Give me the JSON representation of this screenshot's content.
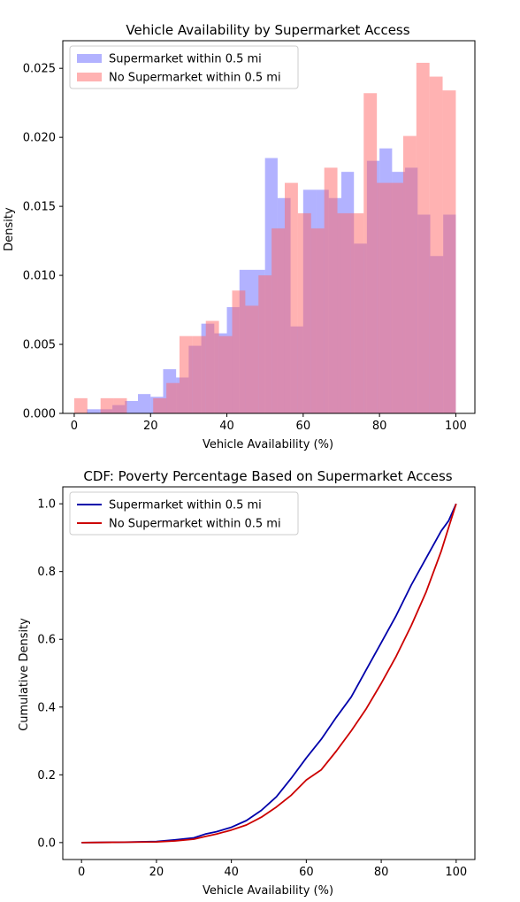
{
  "chart_data": [
    {
      "type": "histogram",
      "title": "Vehicle Availability by Supermarket Access",
      "xlabel": "Vehicle Availability (%)",
      "ylabel": "Density",
      "xlim": [
        -3,
        105
      ],
      "ylim": [
        0,
        0.027
      ],
      "xticks": [
        0,
        20,
        40,
        60,
        80,
        100
      ],
      "yticks": [
        0.0,
        0.005,
        0.01,
        0.015,
        0.02,
        0.025
      ],
      "ytick_labels": [
        "0.000",
        "0.005",
        "0.010",
        "0.015",
        "0.020",
        "0.025"
      ],
      "legend_position": "top-left",
      "series": [
        {
          "name": "Supermarket within 0.5 mi",
          "color": "#6666ff",
          "opacity": 0.5,
          "bin_edges": [
            3.3,
            6.67,
            10.0,
            13.3,
            16.7,
            20.0,
            23.3,
            26.7,
            30.0,
            33.3,
            36.7,
            40.0,
            43.3,
            46.7,
            50.0,
            53.3,
            56.7,
            60.0,
            63.3,
            66.7,
            70.0,
            73.3,
            76.7,
            80.0,
            83.3,
            86.7,
            90.0,
            93.3,
            96.7,
            100.0
          ],
          "values": [
            0.0003,
            0.0003,
            0.0006,
            0.0009,
            0.0014,
            0.0012,
            0.0032,
            0.0026,
            0.0049,
            0.0065,
            0.0058,
            0.0077,
            0.0104,
            0.0104,
            0.0185,
            0.0156,
            0.0063,
            0.0162,
            0.0162,
            0.0156,
            0.0175,
            0.0123,
            0.0183,
            0.0192,
            0.0175,
            0.0178,
            0.0144,
            0.0114,
            0.0144
          ]
        },
        {
          "name": "No Supermarket within 0.5 mi",
          "color": "#ff6666",
          "opacity": 0.5,
          "bin_edges": [
            0.0,
            3.45,
            6.9,
            10.34,
            13.79,
            17.24,
            20.69,
            24.14,
            27.59,
            31.03,
            34.48,
            37.93,
            41.38,
            44.83,
            48.28,
            51.72,
            55.17,
            58.62,
            62.07,
            65.52,
            68.97,
            72.41,
            75.86,
            79.31,
            82.76,
            86.21,
            89.66,
            93.1,
            96.55,
            100.0
          ],
          "values": [
            0.0011,
            0.0,
            0.0011,
            0.0011,
            0.0,
            0.0,
            0.0011,
            0.0022,
            0.0056,
            0.0056,
            0.0067,
            0.0056,
            0.0089,
            0.0078,
            0.01,
            0.0134,
            0.0167,
            0.0145,
            0.0134,
            0.0178,
            0.0145,
            0.0145,
            0.0232,
            0.0167,
            0.0167,
            0.0201,
            0.0254,
            0.0244,
            0.0234
          ]
        }
      ]
    },
    {
      "type": "line",
      "title": "CDF: Poverty Percentage Based on Supermarket Access",
      "xlabel": "Vehicle Availability (%)",
      "ylabel": "Cumulative Density",
      "xlim": [
        -5,
        105
      ],
      "ylim": [
        -0.05,
        1.05
      ],
      "xticks": [
        0,
        20,
        40,
        60,
        80,
        100
      ],
      "yticks": [
        0.0,
        0.2,
        0.4,
        0.6,
        0.8,
        1.0
      ],
      "ytick_labels": [
        "0.0",
        "0.2",
        "0.4",
        "0.6",
        "0.8",
        "1.0"
      ],
      "legend_position": "top-left",
      "series": [
        {
          "name": "Supermarket within 0.5 mi",
          "color": "#0000aa",
          "x": [
            0,
            10,
            20,
            25,
            30,
            33,
            36,
            40,
            44,
            48,
            52,
            56,
            60,
            64,
            68,
            72,
            76,
            80,
            84,
            88,
            92,
            96,
            98,
            100
          ],
          "y": [
            0.0,
            0.001,
            0.003,
            0.008,
            0.014,
            0.025,
            0.032,
            0.045,
            0.065,
            0.095,
            0.135,
            0.19,
            0.25,
            0.305,
            0.37,
            0.43,
            0.51,
            0.59,
            0.67,
            0.76,
            0.84,
            0.92,
            0.95,
            1.0
          ]
        },
        {
          "name": "No Supermarket within 0.5 mi",
          "color": "#cc0000",
          "x": [
            0,
            10,
            20,
            25,
            30,
            33,
            36,
            40,
            44,
            48,
            52,
            56,
            60,
            64,
            68,
            72,
            76,
            80,
            84,
            88,
            92,
            96,
            98,
            100
          ],
          "y": [
            0.0,
            0.001,
            0.002,
            0.005,
            0.01,
            0.018,
            0.025,
            0.037,
            0.052,
            0.075,
            0.105,
            0.14,
            0.185,
            0.215,
            0.27,
            0.33,
            0.395,
            0.47,
            0.55,
            0.64,
            0.74,
            0.86,
            0.93,
            1.0
          ]
        }
      ]
    }
  ]
}
